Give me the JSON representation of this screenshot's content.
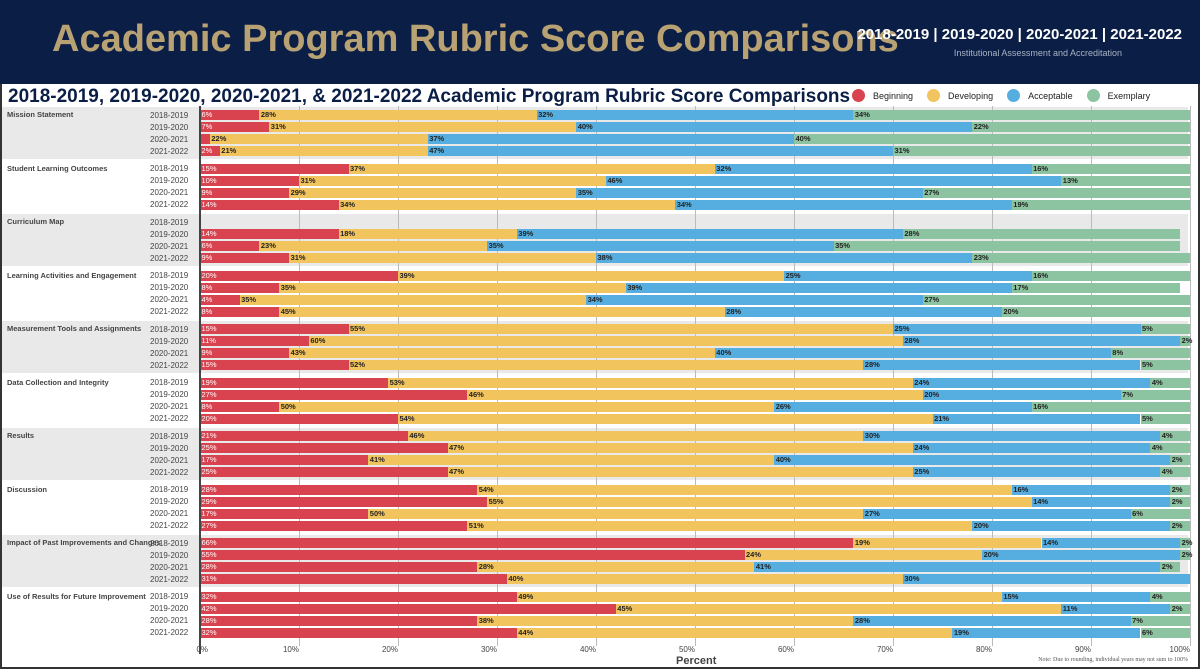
{
  "header": {
    "title": "Academic Program Rubric Score Comparisons",
    "years": "2018-2019 | 2019-2020 | 2020-2021 | 2021-2022",
    "organization": "Institutional Assessment and Accreditation"
  },
  "chart_data": {
    "type": "bar",
    "orientation": "horizontal-stacked-100",
    "title": "2018-2019, 2019-2020, 2020-2021, & 2021-2022 Academic Program Rubric Score Comparisons",
    "xlabel": "Percent",
    "xlim": [
      0,
      100
    ],
    "x_ticks": [
      "0%",
      "10%",
      "20%",
      "30%",
      "40%",
      "50%",
      "60%",
      "70%",
      "80%",
      "90%",
      "100%"
    ],
    "grid": true,
    "legend_placement": "top-right",
    "note": "Note: Due to rounding, individual years may not sum to 100%",
    "series": [
      {
        "name": "Beginning",
        "color": "#d9434f"
      },
      {
        "name": "Developing",
        "color": "#f2c45e"
      },
      {
        "name": "Acceptable",
        "color": "#55ade0"
      },
      {
        "name": "Exemplary",
        "color": "#8cc3a0"
      }
    ],
    "years": [
      "2018-2019",
      "2019-2020",
      "2020-2021",
      "2021-2022"
    ],
    "categories": [
      {
        "name": "Mission Statement",
        "values": [
          [
            6,
            28,
            32,
            34
          ],
          [
            7,
            31,
            40,
            22
          ],
          [
            1,
            22,
            37,
            40
          ],
          [
            2,
            21,
            47,
            31
          ]
        ]
      },
      {
        "name": "Student Learning Outcomes",
        "values": [
          [
            15,
            37,
            32,
            16
          ],
          [
            10,
            31,
            46,
            13
          ],
          [
            9,
            29,
            35,
            27
          ],
          [
            14,
            34,
            34,
            19
          ]
        ]
      },
      {
        "name": "Curriculum Map",
        "values": [
          null,
          [
            14,
            18,
            39,
            28
          ],
          [
            6,
            23,
            35,
            35
          ],
          [
            9,
            31,
            38,
            23
          ]
        ]
      },
      {
        "name": "Learning Activities and Engagement",
        "values": [
          [
            20,
            39,
            25,
            16
          ],
          [
            8,
            35,
            39,
            17
          ],
          [
            4,
            35,
            34,
            27
          ],
          [
            8,
            45,
            28,
            20
          ]
        ]
      },
      {
        "name": "Measurement Tools and Assignments",
        "values": [
          [
            15,
            55,
            25,
            5
          ],
          [
            11,
            60,
            28,
            2
          ],
          [
            9,
            43,
            40,
            8
          ],
          [
            15,
            52,
            28,
            5
          ]
        ]
      },
      {
        "name": "Data Collection and Integrity",
        "values": [
          [
            19,
            53,
            24,
            4
          ],
          [
            27,
            46,
            20,
            7
          ],
          [
            8,
            50,
            26,
            16
          ],
          [
            20,
            54,
            21,
            5
          ]
        ]
      },
      {
        "name": "Results",
        "values": [
          [
            21,
            46,
            30,
            4
          ],
          [
            25,
            47,
            24,
            4
          ],
          [
            17,
            41,
            40,
            2
          ],
          [
            25,
            47,
            25,
            4
          ]
        ]
      },
      {
        "name": "Discussion",
        "values": [
          [
            28,
            54,
            16,
            2
          ],
          [
            29,
            55,
            14,
            2
          ],
          [
            17,
            50,
            27,
            6
          ],
          [
            27,
            51,
            20,
            2
          ]
        ]
      },
      {
        "name": "Impact of Past Improvements and Changes",
        "values": [
          [
            66,
            19,
            14,
            2
          ],
          [
            55,
            24,
            20,
            2
          ],
          [
            28,
            28,
            41,
            2
          ],
          [
            31,
            40,
            30,
            0
          ]
        ]
      },
      {
        "name": "Use of Results for Future Improvement",
        "values": [
          [
            32,
            49,
            15,
            4
          ],
          [
            42,
            45,
            11,
            2
          ],
          [
            28,
            38,
            28,
            7
          ],
          [
            32,
            44,
            19,
            6
          ]
        ]
      }
    ]
  }
}
